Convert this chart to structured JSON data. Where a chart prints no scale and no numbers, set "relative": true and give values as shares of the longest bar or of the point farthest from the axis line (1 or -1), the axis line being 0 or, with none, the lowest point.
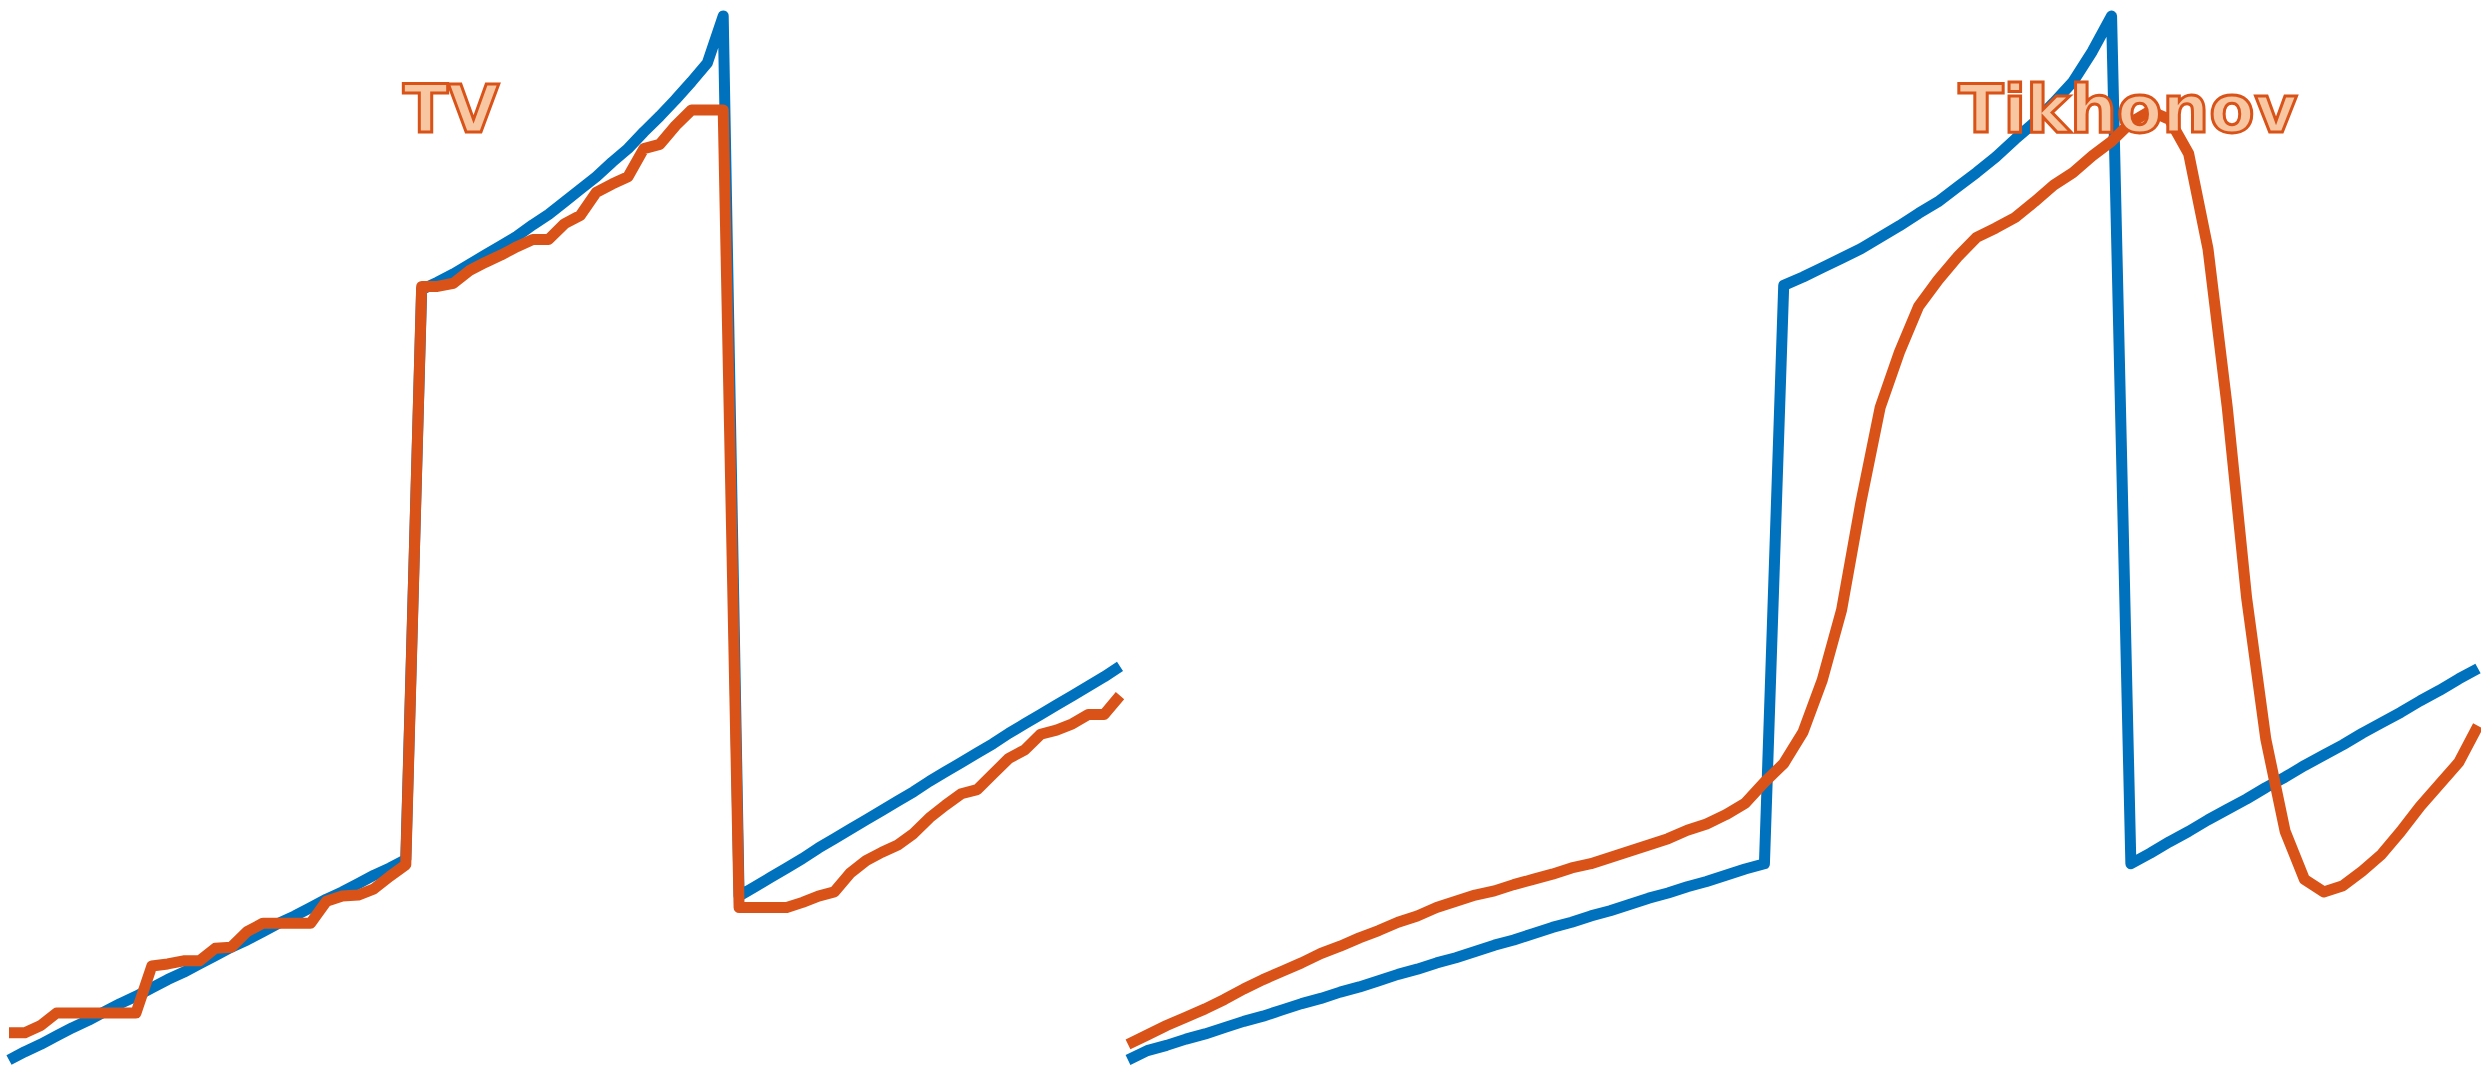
{
  "chart_data": [
    {
      "type": "line",
      "title": "TV",
      "relative": true,
      "tick_labels": false,
      "line_style": "solid",
      "marker": "none",
      "categories": [
        null,
        null,
        null,
        null,
        null,
        null,
        null,
        null,
        null,
        null,
        null,
        null,
        null,
        null,
        null,
        null,
        null,
        null,
        null,
        null,
        null,
        null,
        null,
        null,
        null,
        null,
        null,
        null,
        null,
        null,
        null,
        null,
        null,
        null,
        null,
        null,
        null,
        null,
        null,
        null,
        null,
        null,
        null,
        null,
        null,
        null,
        null,
        null,
        null,
        null,
        null,
        null,
        null,
        null,
        null,
        null,
        null,
        null,
        null,
        null,
        null,
        null,
        null,
        null,
        null,
        null,
        null,
        null,
        null,
        null,
        null
      ],
      "series": [
        {
          "color": "#0072bd",
          "values": [
            0,
            0.008,
            0.015,
            0.023,
            0.031,
            0.038,
            0.046,
            0.054,
            0.061,
            0.069,
            0.077,
            0.084,
            0.092,
            0.1,
            0.108,
            0.115,
            0.123,
            0.131,
            0.138,
            0.146,
            0.154,
            0.161,
            0.169,
            0.177,
            0.184,
            0.192,
            0.738,
            0.745,
            0.753,
            0.762,
            0.771,
            0.78,
            0.789,
            0.8,
            0.81,
            0.822,
            0.834,
            0.846,
            0.86,
            0.873,
            0.889,
            0.904,
            0.92,
            0.937,
            0.955,
            1.0,
            0.157,
            0.166,
            0.175,
            0.184,
            0.193,
            0.203,
            0.212,
            0.221,
            0.23,
            0.239,
            0.248,
            0.257,
            0.267,
            0.276,
            0.285,
            0.294,
            0.303,
            0.313,
            0.322,
            0.331,
            0.34,
            0.349,
            0.358,
            0.367,
            0.377
          ]
        },
        {
          "color": "#d95319",
          "values": [
            0.026,
            0.026,
            0.033,
            0.045,
            0.045,
            0.045,
            0.045,
            0.045,
            0.045,
            0.09,
            0.092,
            0.095,
            0.095,
            0.107,
            0.108,
            0.123,
            0.131,
            0.131,
            0.131,
            0.131,
            0.152,
            0.157,
            0.158,
            0.164,
            0.176,
            0.187,
            0.741,
            0.741,
            0.744,
            0.756,
            0.764,
            0.771,
            0.779,
            0.786,
            0.786,
            0.801,
            0.809,
            0.831,
            0.839,
            0.846,
            0.873,
            0.877,
            0.895,
            0.91,
            0.91,
            0.91,
            0.146,
            0.146,
            0.146,
            0.146,
            0.151,
            0.157,
            0.161,
            0.179,
            0.191,
            0.199,
            0.206,
            0.217,
            0.232,
            0.244,
            0.255,
            0.259,
            0.274,
            0.289,
            0.297,
            0.312,
            0.316,
            0.322,
            0.331,
            0.331,
            0.349
          ]
        }
      ]
    },
    {
      "type": "line",
      "title": "Tikhonov",
      "relative": true,
      "tick_labels": false,
      "line_style": "solid",
      "marker": "none",
      "categories": [
        null,
        null,
        null,
        null,
        null,
        null,
        null,
        null,
        null,
        null,
        null,
        null,
        null,
        null,
        null,
        null,
        null,
        null,
        null,
        null,
        null,
        null,
        null,
        null,
        null,
        null,
        null,
        null,
        null,
        null,
        null,
        null,
        null,
        null,
        null,
        null,
        null,
        null,
        null,
        null,
        null,
        null,
        null,
        null,
        null,
        null,
        null,
        null,
        null,
        null,
        null,
        null,
        null,
        null,
        null,
        null,
        null,
        null,
        null,
        null,
        null,
        null,
        null,
        null,
        null,
        null,
        null,
        null,
        null,
        null,
        null
      ],
      "series": [
        {
          "color": "#0072bd",
          "values": [
            0,
            0.009,
            0.014,
            0.02,
            0.025,
            0.031,
            0.037,
            0.042,
            0.048,
            0.054,
            0.059,
            0.065,
            0.07,
            0.076,
            0.082,
            0.087,
            0.093,
            0.098,
            0.104,
            0.11,
            0.115,
            0.121,
            0.127,
            0.132,
            0.138,
            0.143,
            0.149,
            0.155,
            0.16,
            0.166,
            0.171,
            0.177,
            0.183,
            0.188,
            0.742,
            0.75,
            0.759,
            0.768,
            0.777,
            0.788,
            0.799,
            0.811,
            0.822,
            0.836,
            0.85,
            0.865,
            0.882,
            0.898,
            0.917,
            0.937,
            0.966,
            1.0,
            0.188,
            0.198,
            0.209,
            0.219,
            0.23,
            0.24,
            0.25,
            0.261,
            0.271,
            0.282,
            0.292,
            0.302,
            0.313,
            0.323,
            0.333,
            0.344,
            0.354,
            0.365,
            0.375
          ]
        },
        {
          "color": "#d95319",
          "values": [
            0.015,
            0.024,
            0.033,
            0.041,
            0.049,
            0.058,
            0.068,
            0.077,
            0.085,
            0.093,
            0.102,
            0.109,
            0.117,
            0.124,
            0.132,
            0.138,
            0.146,
            0.152,
            0.158,
            0.162,
            0.168,
            0.173,
            0.178,
            0.184,
            0.188,
            0.194,
            0.2,
            0.206,
            0.212,
            0.22,
            0.226,
            0.235,
            0.246,
            0.266,
            0.284,
            0.314,
            0.364,
            0.431,
            0.534,
            0.625,
            0.678,
            0.722,
            0.747,
            0.769,
            0.788,
            0.797,
            0.807,
            0.822,
            0.838,
            0.85,
            0.866,
            0.88,
            0.898,
            0.909,
            0.901,
            0.868,
            0.777,
            0.625,
            0.443,
            0.307,
            0.219,
            0.173,
            0.161,
            0.167,
            0.181,
            0.197,
            0.219,
            0.243,
            0.264,
            0.285,
            0.32
          ]
        }
      ]
    }
  ]
}
